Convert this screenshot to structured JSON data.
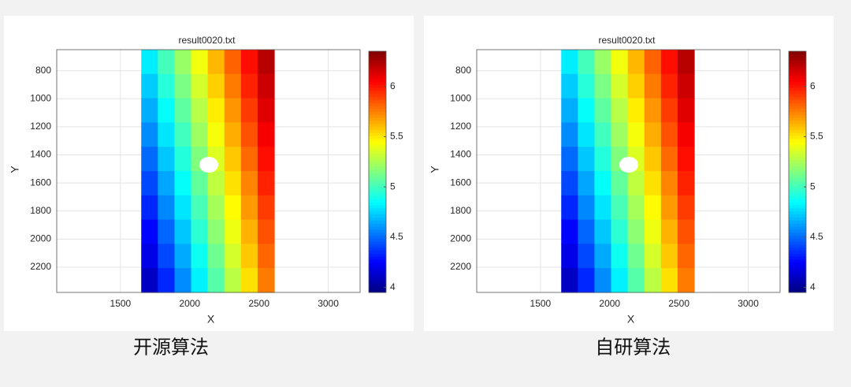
{
  "chart_data": [
    {
      "type": "heatmap",
      "title": "result0020.txt",
      "xlabel": "X",
      "ylabel": "Y",
      "xlim": [
        1040,
        3230
      ],
      "ylim": [
        650,
        2380
      ],
      "y_reversed": true,
      "xticks": [
        1500,
        2000,
        2500,
        3000
      ],
      "yticks": [
        800,
        1000,
        1200,
        1400,
        1600,
        1800,
        2000,
        2200
      ],
      "grid": true,
      "colormap": "jet",
      "clim": [
        3.95,
        6.35
      ],
      "cticks": [
        4,
        4.5,
        5,
        5.5,
        6
      ],
      "xbins": [
        1650,
        1770,
        1890,
        2010,
        2130,
        2250,
        2370,
        2490,
        2610
      ],
      "ybins": [
        650,
        823,
        996,
        1169,
        1342,
        1515,
        1688,
        1861,
        2034,
        2207,
        2380
      ],
      "values": [
        [
          4.81,
          5.01,
          5.21,
          5.42,
          5.62,
          5.82,
          6.02,
          6.22
        ],
        [
          4.73,
          4.94,
          5.14,
          5.35,
          5.56,
          5.76,
          5.97,
          6.17
        ],
        [
          4.66,
          4.86,
          5.07,
          5.28,
          5.49,
          5.7,
          5.91,
          6.12
        ],
        [
          4.58,
          4.79,
          5.0,
          5.22,
          5.43,
          5.64,
          5.86,
          6.07
        ],
        [
          4.5,
          4.72,
          4.93,
          5.15,
          5.37,
          5.58,
          5.8,
          6.02
        ],
        [
          4.42,
          4.64,
          4.86,
          5.08,
          5.3,
          5.52,
          5.74,
          5.97
        ],
        [
          4.34,
          4.57,
          4.79,
          5.02,
          5.24,
          5.46,
          5.69,
          5.91
        ],
        [
          4.26,
          4.49,
          4.72,
          4.95,
          5.18,
          5.41,
          5.63,
          5.86
        ],
        [
          4.19,
          4.42,
          4.65,
          4.88,
          5.11,
          5.35,
          5.58,
          5.81
        ],
        [
          4.11,
          4.34,
          4.58,
          4.82,
          5.05,
          5.29,
          5.52,
          5.76
        ]
      ],
      "caption": "开源算法"
    },
    {
      "type": "heatmap",
      "title": "result0020.txt",
      "xlabel": "X",
      "ylabel": "Y",
      "xlim": [
        1040,
        3230
      ],
      "ylim": [
        650,
        2380
      ],
      "y_reversed": true,
      "xticks": [
        1500,
        2000,
        2500,
        3000
      ],
      "yticks": [
        800,
        1000,
        1200,
        1400,
        1600,
        1800,
        2000,
        2200
      ],
      "grid": true,
      "colormap": "jet",
      "clim": [
        3.95,
        6.35
      ],
      "cticks": [
        4,
        4.5,
        5,
        5.5,
        6
      ],
      "xbins": [
        1650,
        1770,
        1890,
        2010,
        2130,
        2250,
        2370,
        2490,
        2610
      ],
      "ybins": [
        650,
        823,
        996,
        1169,
        1342,
        1515,
        1688,
        1861,
        2034,
        2207,
        2380
      ],
      "values": [
        [
          4.81,
          5.01,
          5.21,
          5.42,
          5.62,
          5.82,
          6.02,
          6.22
        ],
        [
          4.73,
          4.94,
          5.14,
          5.35,
          5.56,
          5.76,
          5.97,
          6.17
        ],
        [
          4.66,
          4.86,
          5.07,
          5.28,
          5.49,
          5.7,
          5.91,
          6.12
        ],
        [
          4.58,
          4.79,
          5.0,
          5.22,
          5.43,
          5.64,
          5.86,
          6.07
        ],
        [
          4.5,
          4.72,
          4.93,
          5.15,
          5.37,
          5.58,
          5.8,
          6.02
        ],
        [
          4.42,
          4.64,
          4.86,
          5.08,
          5.3,
          5.52,
          5.74,
          5.97
        ],
        [
          4.34,
          4.57,
          4.79,
          5.02,
          5.24,
          5.46,
          5.69,
          5.91
        ],
        [
          4.26,
          4.49,
          4.72,
          4.95,
          5.18,
          5.41,
          5.63,
          5.86
        ],
        [
          4.19,
          4.42,
          4.65,
          4.88,
          5.11,
          5.35,
          5.58,
          5.81
        ],
        [
          4.11,
          4.34,
          4.58,
          4.82,
          5.05,
          5.29,
          5.52,
          5.76
        ]
      ],
      "caption": "自研算法"
    }
  ]
}
